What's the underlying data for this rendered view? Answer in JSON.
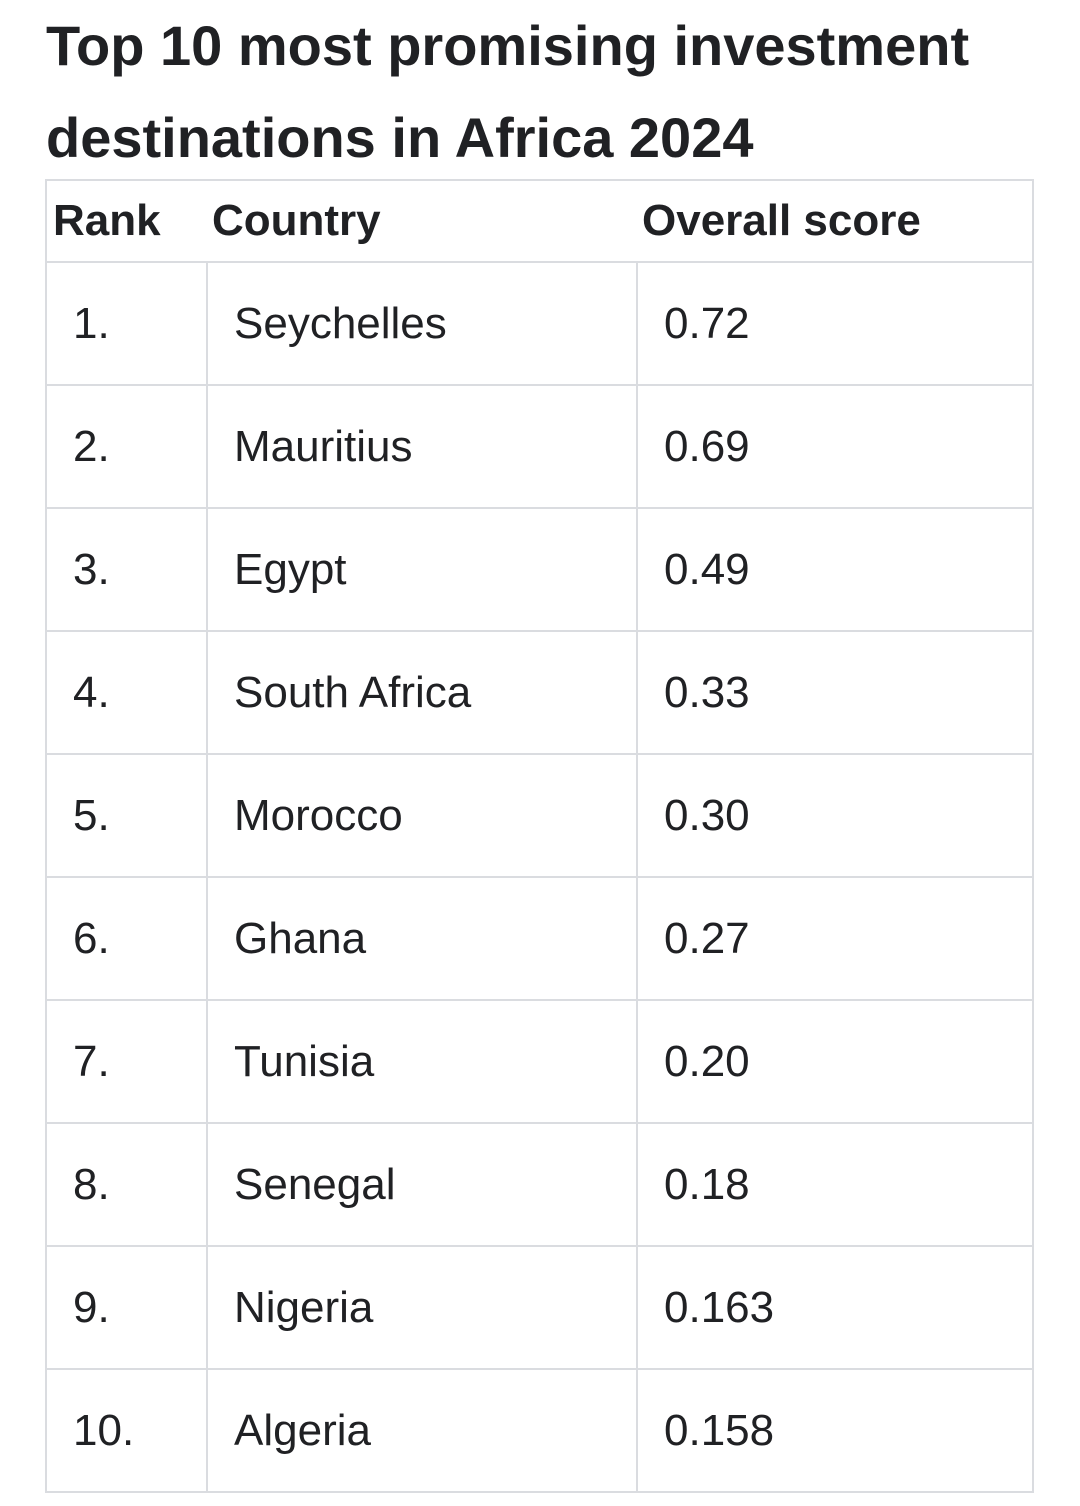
{
  "title": "Top 10 most promising investment destinations in Africa 2024",
  "table": {
    "headers": {
      "rank": "Rank",
      "country": "Country",
      "score": "Overall score"
    },
    "rows": [
      {
        "rank": "1.",
        "country": "Seychelles",
        "score": "0.72"
      },
      {
        "rank": "2.",
        "country": "Mauritius",
        "score": "0.69"
      },
      {
        "rank": "3.",
        "country": "Egypt",
        "score": "0.49"
      },
      {
        "rank": "4.",
        "country": "South Africa",
        "score": "0.33"
      },
      {
        "rank": "5.",
        "country": "Morocco",
        "score": "0.30"
      },
      {
        "rank": "6.",
        "country": "Ghana",
        "score": "0.27"
      },
      {
        "rank": "7.",
        "country": "Tunisia",
        "score": "0.20"
      },
      {
        "rank": "8.",
        "country": "Senegal",
        "score": "0.18"
      },
      {
        "rank": "9.",
        "country": "Nigeria",
        "score": "0.163"
      },
      {
        "rank": "10.",
        "country": "Algeria",
        "score": "0.158"
      }
    ]
  }
}
